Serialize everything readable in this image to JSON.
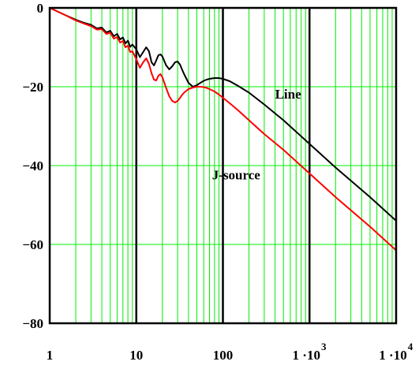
{
  "chart_data": {
    "type": "line",
    "title": "",
    "xlabel": "",
    "ylabel": "",
    "x_scale": "log",
    "xlim": [
      1,
      10000
    ],
    "ylim": [
      -80,
      0
    ],
    "grid": true,
    "x_major_ticks": [
      {
        "value": 1,
        "label": "1",
        "sup": ""
      },
      {
        "value": 10,
        "label": "10",
        "sup": ""
      },
      {
        "value": 100,
        "label": "100",
        "sup": ""
      },
      {
        "value": 1000,
        "label": "1 ·10",
        "sup": "3"
      },
      {
        "value": 10000,
        "label": "1 ·10",
        "sup": "4"
      }
    ],
    "y_ticks": [
      {
        "value": 0,
        "label": "0"
      },
      {
        "value": -20,
        "label": "−20"
      },
      {
        "value": -40,
        "label": "−40"
      },
      {
        "value": -60,
        "label": "−60"
      },
      {
        "value": -80,
        "label": "−80"
      }
    ],
    "colors": {
      "grid_minor": "#00ee00",
      "grid_major": "#000000",
      "line_series": "#000000",
      "jsource_series": "#ff0000",
      "frame": "#000000"
    },
    "series": [
      {
        "name": "Line",
        "color": "#000000",
        "x": [
          1,
          1.5,
          2,
          2.5,
          3,
          3.5,
          4,
          4.5,
          5,
          5.5,
          6,
          6.5,
          7,
          7.5,
          8,
          8.5,
          9,
          10,
          11,
          12,
          13,
          14,
          15,
          16,
          17,
          18,
          19,
          20,
          22,
          24,
          26,
          28,
          30,
          32,
          34,
          36,
          40,
          45,
          50,
          55,
          60,
          65,
          70,
          80,
          90,
          100,
          120,
          150,
          200,
          300,
          500,
          1000,
          2000,
          5000,
          10000
        ],
        "y": [
          0,
          -1.8,
          -3,
          -3.8,
          -4.3,
          -5.2,
          -5,
          -6.2,
          -5.8,
          -7.2,
          -6.6,
          -8,
          -7.5,
          -9,
          -8.3,
          -9.9,
          -9.3,
          -10.5,
          -12.5,
          -11.2,
          -10,
          -11,
          -13.8,
          -14.6,
          -13.3,
          -12,
          -11.8,
          -12.3,
          -14.5,
          -15.6,
          -14.8,
          -13.8,
          -13.6,
          -14.4,
          -15.8,
          -17,
          -19,
          -20,
          -19.6,
          -19,
          -18.5,
          -18.2,
          -18,
          -17.8,
          -17.8,
          -18,
          -18.6,
          -19.8,
          -21.5,
          -24.5,
          -28.5,
          -34.5,
          -40.5,
          -48,
          -54
        ]
      },
      {
        "name": "J-source",
        "color": "#ff0000",
        "x": [
          1,
          1.5,
          2,
          2.5,
          3,
          3.5,
          4,
          4.5,
          5,
          5.5,
          6,
          6.5,
          7,
          7.5,
          8,
          8.5,
          9,
          10,
          11,
          12,
          13,
          14,
          15,
          16,
          17,
          18,
          19,
          20,
          22,
          24,
          26,
          28,
          30,
          32,
          34,
          36,
          40,
          45,
          50,
          55,
          60,
          65,
          70,
          80,
          90,
          100,
          120,
          150,
          200,
          300,
          500,
          1000,
          2000,
          5000,
          10000
        ],
        "y": [
          0,
          -1.8,
          -3.2,
          -4,
          -4.6,
          -5.5,
          -5.4,
          -6.6,
          -6.3,
          -7.8,
          -7.4,
          -8.8,
          -8.4,
          -10,
          -9.6,
          -11.2,
          -11,
          -13,
          -15.2,
          -13.8,
          -12.8,
          -14.2,
          -16.6,
          -18.2,
          -18.4,
          -17.2,
          -16.8,
          -17.6,
          -20.2,
          -22.4,
          -23.6,
          -24,
          -23.6,
          -22.8,
          -22,
          -21.4,
          -20.6,
          -20.2,
          -20,
          -20,
          -20.1,
          -20.3,
          -20.6,
          -21.2,
          -22,
          -22.8,
          -24.2,
          -26,
          -28.5,
          -32,
          -36,
          -42,
          -48,
          -55.5,
          -61.5
        ]
      }
    ],
    "annotations": [
      {
        "text": "Line",
        "series": "Line"
      },
      {
        "text": "J-source",
        "series": "J-source"
      }
    ]
  }
}
